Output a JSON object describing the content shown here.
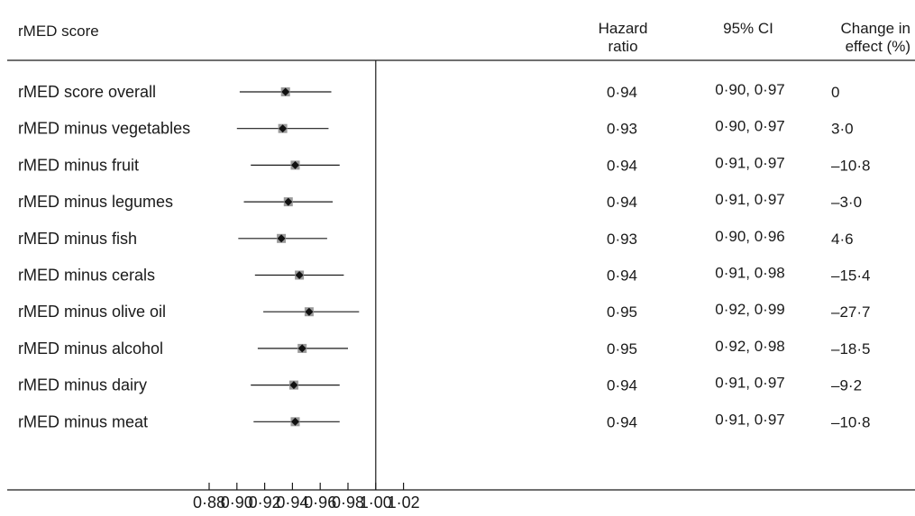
{
  "header": {
    "label_col": "rMED score",
    "hr_col_line1": "Hazard",
    "hr_col_line2": "ratio",
    "ci_col": "95% CI",
    "change_col_line1": "Change in",
    "change_col_line2": "effect (%)"
  },
  "chart_data": {
    "type": "forest",
    "title": "",
    "xlabel": "",
    "ylabel": "",
    "xlim": [
      0.864,
      1.03
    ],
    "reference_line": 1.0,
    "x_ticks": [
      0.88,
      0.9,
      0.92,
      0.94,
      0.96,
      0.98,
      1.0,
      1.02
    ],
    "x_tick_labels": [
      "0·88",
      "0·90",
      "0·92",
      "0·94",
      "0·96",
      "0·98",
      "1·00",
      "1·02"
    ],
    "rows": [
      {
        "label": "rMED score overall",
        "hr": 0.935,
        "lo": 0.902,
        "hi": 0.968,
        "hr_text": "0·94",
        "ci_text": "0·90, 0·97",
        "change_text": "0"
      },
      {
        "label": "rMED minus vegetables",
        "hr": 0.933,
        "lo": 0.9,
        "hi": 0.966,
        "hr_text": "0·93",
        "ci_text": "0·90, 0·97",
        "change_text": "3·0"
      },
      {
        "label": "rMED minus fruit",
        "hr": 0.942,
        "lo": 0.91,
        "hi": 0.974,
        "hr_text": "0·94",
        "ci_text": "0·91, 0·97",
        "change_text": "–10·8"
      },
      {
        "label": "rMED minus legumes",
        "hr": 0.937,
        "lo": 0.905,
        "hi": 0.969,
        "hr_text": "0·94",
        "ci_text": "0·91, 0·97",
        "change_text": "–3·0"
      },
      {
        "label": "rMED minus fish",
        "hr": 0.932,
        "lo": 0.901,
        "hi": 0.965,
        "hr_text": "0·93",
        "ci_text": "0·90, 0·96",
        "change_text": "4·6"
      },
      {
        "label": "rMED minus cerals",
        "hr": 0.945,
        "lo": 0.913,
        "hi": 0.977,
        "hr_text": "0·94",
        "ci_text": "0·91, 0·98",
        "change_text": "–15·4"
      },
      {
        "label": "rMED minus olive oil",
        "hr": 0.952,
        "lo": 0.919,
        "hi": 0.988,
        "hr_text": "0·95",
        "ci_text": "0·92, 0·99",
        "change_text": "–27·7"
      },
      {
        "label": "rMED minus alcohol",
        "hr": 0.947,
        "lo": 0.915,
        "hi": 0.98,
        "hr_text": "0·95",
        "ci_text": "0·92, 0·98",
        "change_text": "–18·5"
      },
      {
        "label": "rMED minus dairy",
        "hr": 0.941,
        "lo": 0.91,
        "hi": 0.974,
        "hr_text": "0·94",
        "ci_text": "0·91, 0·97",
        "change_text": "–9·2"
      },
      {
        "label": "rMED minus meat",
        "hr": 0.942,
        "lo": 0.912,
        "hi": 0.974,
        "hr_text": "0·94",
        "ci_text": "0·91, 0·97",
        "change_text": "–10·8"
      }
    ]
  },
  "colors": {
    "ink": "#1a1a1a",
    "marker_halo": "#9a9a9a",
    "marker": "#111111"
  }
}
